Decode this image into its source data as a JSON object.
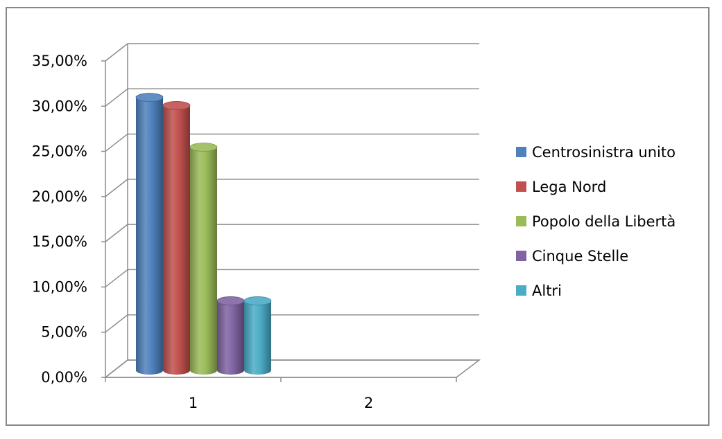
{
  "chart_data": {
    "type": "bar",
    "categories": [
      "1",
      "2"
    ],
    "series": [
      {
        "name": "Centrosinistra unito",
        "values": [
          30.2,
          null
        ],
        "color": "#4F81BD"
      },
      {
        "name": "Lega Nord",
        "values": [
          29.3,
          null
        ],
        "color": "#C0504D"
      },
      {
        "name": "Popolo della Libertà",
        "values": [
          24.7,
          null
        ],
        "color": "#9BBB59"
      },
      {
        "name": "Cinque Stelle",
        "values": [
          7.7,
          null
        ],
        "color": "#8064A2"
      },
      {
        "name": "Altri",
        "values": [
          7.7,
          null
        ],
        "color": "#4BACC6"
      }
    ],
    "y_ticks": [
      "0,00%",
      "5,00%",
      "10,00%",
      "15,00%",
      "20,00%",
      "25,00%",
      "30,00%",
      "35,00%"
    ],
    "ylim": [
      0,
      35
    ],
    "legend_position": "right",
    "grid": true,
    "style": "3d-cylinder"
  }
}
